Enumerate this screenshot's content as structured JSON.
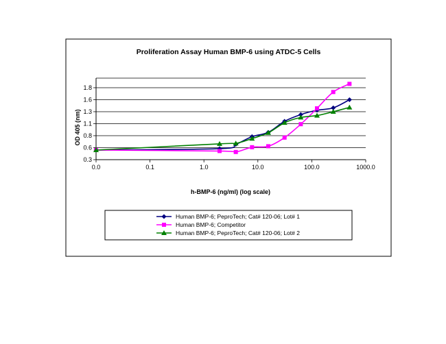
{
  "chart_data": {
    "type": "line",
    "title": "Proliferation Assay Human BMP-6 using ATDC-5 Cells",
    "xlabel": "h-BMP-6 (ng/ml) (log scale)",
    "ylabel": "OD 405 (nm)",
    "x_scale": "log",
    "x_ticks": [
      "0.0",
      "0.1",
      "1.0",
      "10.0",
      "100.0",
      "1000.0"
    ],
    "y_ticks": [
      "0.3",
      "0.6",
      "0.8",
      "1.1",
      "1.3",
      "1.6",
      "1.8"
    ],
    "ylim": [
      0.3,
      2.0
    ],
    "grid": "horizontal",
    "legend_position": "bottom",
    "series": [
      {
        "name": "Human BMP-6; PeproTech; Cat# 120-06; Lot# 1",
        "color": "#000080",
        "marker": "diamond",
        "points": [
          [
            0.01,
            0.5
          ],
          [
            1.95,
            0.53
          ],
          [
            3.9,
            0.62
          ],
          [
            7.8,
            0.78
          ],
          [
            15.6,
            0.87
          ],
          [
            31.25,
            1.1
          ],
          [
            62.5,
            1.24
          ],
          [
            125,
            1.33
          ],
          [
            250,
            1.38
          ],
          [
            500,
            1.55
          ]
        ]
      },
      {
        "name": "Human BMP-6; Competitor",
        "color": "#ff00ff",
        "marker": "square",
        "points": [
          [
            0.01,
            0.5
          ],
          [
            1.95,
            0.48
          ],
          [
            3.9,
            0.46
          ],
          [
            7.8,
            0.56
          ],
          [
            15.6,
            0.58
          ],
          [
            31.25,
            0.76
          ],
          [
            62.5,
            1.04
          ],
          [
            125,
            1.37
          ],
          [
            250,
            1.71
          ],
          [
            500,
            1.88
          ]
        ]
      },
      {
        "name": "Human BMP-6; PeproTech; Cat# 120-06; Lot# 2",
        "color": "#008000",
        "marker": "triangle",
        "points": [
          [
            0.01,
            0.5
          ],
          [
            1.95,
            0.63
          ],
          [
            3.9,
            0.64
          ],
          [
            7.8,
            0.74
          ],
          [
            15.6,
            0.86
          ],
          [
            31.25,
            1.07
          ],
          [
            62.5,
            1.18
          ],
          [
            125,
            1.22
          ],
          [
            250,
            1.3
          ],
          [
            500,
            1.39
          ]
        ]
      }
    ]
  }
}
